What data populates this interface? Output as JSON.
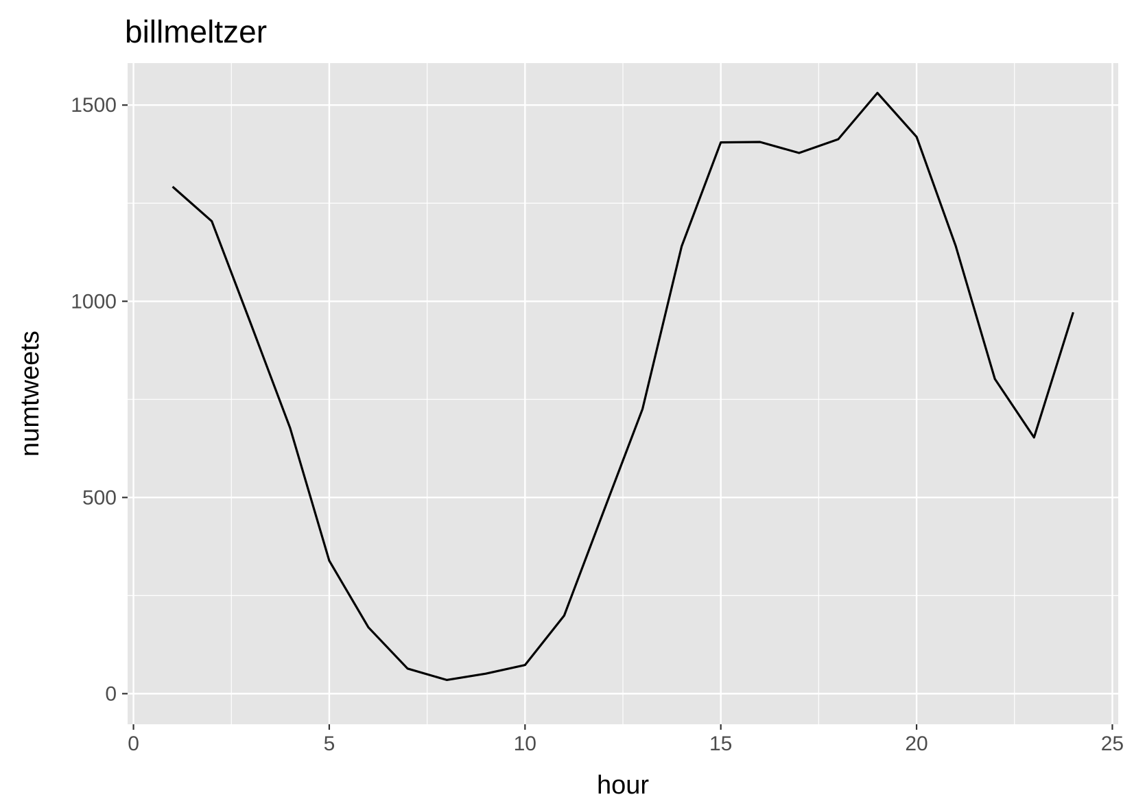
{
  "chart_data": {
    "type": "line",
    "title": "billmeltzer",
    "xlabel": "hour",
    "ylabel": "numtweets",
    "xlim": [
      -0.15,
      25.15
    ],
    "ylim": [
      -78,
      1607
    ],
    "x_ticks": [
      0,
      5,
      10,
      15,
      20,
      25
    ],
    "x_tick_labels": [
      "0",
      "5",
      "10",
      "15",
      "20",
      "25"
    ],
    "y_ticks": [
      0,
      500,
      1000,
      1500
    ],
    "y_tick_labels": [
      "0",
      "500",
      "1000",
      "1500"
    ],
    "grid": true,
    "background": "#e5e5e5",
    "grid_color": "#ffffff",
    "line_color": "#000000",
    "series": [
      {
        "x": [
          1,
          2,
          3,
          4,
          5,
          6,
          7,
          8,
          9,
          10,
          11,
          12,
          13,
          14,
          15,
          16,
          17,
          18,
          19,
          20,
          21,
          22,
          23,
          24
        ],
        "values": [
          1292,
          1204,
          942,
          677,
          339,
          169,
          64,
          35,
          51,
          73,
          199,
          463,
          725,
          1140,
          1405,
          1406,
          1378,
          1413,
          1531,
          1419,
          1141,
          802,
          653,
          972
        ]
      }
    ]
  }
}
